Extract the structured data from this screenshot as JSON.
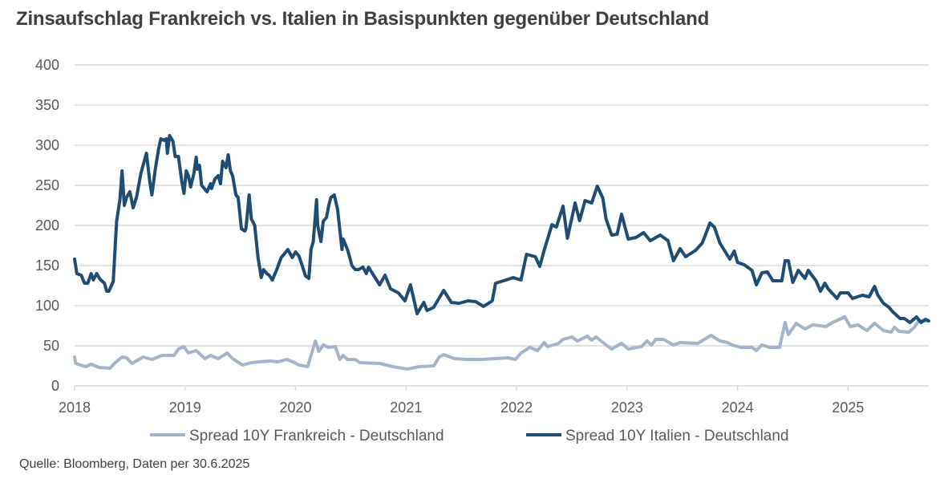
{
  "chart_data": {
    "type": "line",
    "title": "Zinsaufschlag Frankreich vs. Italien in Basispunkten gegenüber Deutschland",
    "xlabel": "",
    "ylabel": "",
    "xlim": [
      2018,
      2025.73
    ],
    "ylim": [
      0,
      400
    ],
    "grid": true,
    "legend_position": "bottom",
    "x_ticks": [
      "2018",
      "2019",
      "2020",
      "2021",
      "2022",
      "2023",
      "2024",
      "2025"
    ],
    "x_tick_values": [
      2018,
      2019,
      2020,
      2021,
      2022,
      2023,
      2024,
      2025
    ],
    "y_ticks": [
      0,
      50,
      100,
      150,
      200,
      250,
      300,
      350,
      400
    ],
    "y_tick_labels": [
      "0",
      "50",
      "100",
      "150",
      "200",
      "250",
      "300",
      "350",
      "400"
    ],
    "colors": {
      "frankreich": "#a3b4c9",
      "italien": "#1f4c72",
      "grid": "#d9d9d9"
    },
    "series": [
      {
        "name": "Spread 10Y Frankreich - Deutschland",
        "key": "frankreich",
        "points": [
          [
            2018.0,
            36
          ],
          [
            2018.01,
            28
          ],
          [
            2018.1,
            24
          ],
          [
            2018.15,
            27
          ],
          [
            2018.22,
            23
          ],
          [
            2018.32,
            22
          ],
          [
            2018.36,
            28
          ],
          [
            2018.43,
            36
          ],
          [
            2018.47,
            35
          ],
          [
            2018.52,
            28
          ],
          [
            2018.62,
            36
          ],
          [
            2018.7,
            33
          ],
          [
            2018.79,
            38
          ],
          [
            2018.9,
            38
          ],
          [
            2018.94,
            46
          ],
          [
            2018.99,
            49
          ],
          [
            2019.03,
            41
          ],
          [
            2019.1,
            44
          ],
          [
            2019.18,
            34
          ],
          [
            2019.23,
            38
          ],
          [
            2019.3,
            34
          ],
          [
            2019.38,
            41
          ],
          [
            2019.43,
            34
          ],
          [
            2019.52,
            26
          ],
          [
            2019.6,
            29
          ],
          [
            2019.67,
            30
          ],
          [
            2019.77,
            31
          ],
          [
            2019.84,
            30
          ],
          [
            2019.92,
            33
          ],
          [
            2019.99,
            29
          ],
          [
            2020.03,
            26
          ],
          [
            2020.11,
            24
          ],
          [
            2020.14,
            38
          ],
          [
            2020.18,
            56
          ],
          [
            2020.21,
            43
          ],
          [
            2020.25,
            51
          ],
          [
            2020.3,
            48
          ],
          [
            2020.36,
            49
          ],
          [
            2020.4,
            33
          ],
          [
            2020.43,
            38
          ],
          [
            2020.47,
            33
          ],
          [
            2020.54,
            33
          ],
          [
            2020.58,
            29
          ],
          [
            2020.76,
            28
          ],
          [
            2020.88,
            24
          ],
          [
            2021.01,
            21
          ],
          [
            2021.12,
            24
          ],
          [
            2021.25,
            25
          ],
          [
            2021.3,
            36
          ],
          [
            2021.34,
            39
          ],
          [
            2021.44,
            34
          ],
          [
            2021.54,
            33
          ],
          [
            2021.68,
            33
          ],
          [
            2021.8,
            34
          ],
          [
            2021.92,
            35
          ],
          [
            2021.99,
            33
          ],
          [
            2022.04,
            41
          ],
          [
            2022.12,
            48
          ],
          [
            2022.19,
            44
          ],
          [
            2022.25,
            54
          ],
          [
            2022.28,
            49
          ],
          [
            2022.38,
            53
          ],
          [
            2022.42,
            58
          ],
          [
            2022.5,
            61
          ],
          [
            2022.55,
            56
          ],
          [
            2022.64,
            62
          ],
          [
            2022.68,
            57
          ],
          [
            2022.72,
            61
          ],
          [
            2022.81,
            51
          ],
          [
            2022.86,
            46
          ],
          [
            2022.95,
            53
          ],
          [
            2023.01,
            46
          ],
          [
            2023.13,
            49
          ],
          [
            2023.18,
            56
          ],
          [
            2023.22,
            51
          ],
          [
            2023.26,
            58
          ],
          [
            2023.33,
            58
          ],
          [
            2023.42,
            51
          ],
          [
            2023.48,
            54
          ],
          [
            2023.64,
            53
          ],
          [
            2023.76,
            63
          ],
          [
            2023.84,
            56
          ],
          [
            2023.91,
            54
          ],
          [
            2023.95,
            51
          ],
          [
            2024.03,
            48
          ],
          [
            2024.13,
            48
          ],
          [
            2024.17,
            44
          ],
          [
            2024.22,
            51
          ],
          [
            2024.29,
            48
          ],
          [
            2024.38,
            48
          ],
          [
            2024.43,
            79
          ],
          [
            2024.46,
            64
          ],
          [
            2024.53,
            78
          ],
          [
            2024.61,
            71
          ],
          [
            2024.68,
            76
          ],
          [
            2024.8,
            74
          ],
          [
            2024.86,
            79
          ],
          [
            2024.97,
            86
          ],
          [
            2025.02,
            74
          ],
          [
            2025.09,
            76
          ],
          [
            2025.17,
            69
          ],
          [
            2025.24,
            78
          ],
          [
            2025.32,
            69
          ],
          [
            2025.39,
            67
          ],
          [
            2025.42,
            73
          ],
          [
            2025.46,
            68
          ],
          [
            2025.55,
            67
          ],
          [
            2025.6,
            73
          ],
          [
            2025.64,
            81
          ],
          [
            2025.73,
            81
          ]
        ]
      },
      {
        "name": "Spread 10Y Italien - Deutschland",
        "key": "italien",
        "points": [
          [
            2018.0,
            158
          ],
          [
            2018.02,
            140
          ],
          [
            2018.06,
            138
          ],
          [
            2018.09,
            128
          ],
          [
            2018.12,
            128
          ],
          [
            2018.15,
            140
          ],
          [
            2018.17,
            132
          ],
          [
            2018.2,
            140
          ],
          [
            2018.23,
            133
          ],
          [
            2018.27,
            128
          ],
          [
            2018.29,
            118
          ],
          [
            2018.31,
            118
          ],
          [
            2018.35,
            130
          ],
          [
            2018.38,
            205
          ],
          [
            2018.41,
            232
          ],
          [
            2018.43,
            268
          ],
          [
            2018.45,
            225
          ],
          [
            2018.47,
            235
          ],
          [
            2018.5,
            242
          ],
          [
            2018.53,
            222
          ],
          [
            2018.56,
            235
          ],
          [
            2018.6,
            265
          ],
          [
            2018.62,
            275
          ],
          [
            2018.65,
            290
          ],
          [
            2018.68,
            255
          ],
          [
            2018.7,
            238
          ],
          [
            2018.73,
            270
          ],
          [
            2018.76,
            295
          ],
          [
            2018.78,
            308
          ],
          [
            2018.81,
            306
          ],
          [
            2018.83,
            308
          ],
          [
            2018.84,
            290
          ],
          [
            2018.86,
            312
          ],
          [
            2018.89,
            305
          ],
          [
            2018.91,
            286
          ],
          [
            2018.94,
            286
          ],
          [
            2018.97,
            255
          ],
          [
            2018.99,
            240
          ],
          [
            2019.01,
            268
          ],
          [
            2019.03,
            262
          ],
          [
            2019.05,
            248
          ],
          [
            2019.08,
            265
          ],
          [
            2019.1,
            285
          ],
          [
            2019.11,
            270
          ],
          [
            2019.13,
            275
          ],
          [
            2019.15,
            250
          ],
          [
            2019.18,
            245
          ],
          [
            2019.2,
            242
          ],
          [
            2019.23,
            252
          ],
          [
            2019.24,
            246
          ],
          [
            2019.27,
            258
          ],
          [
            2019.3,
            262
          ],
          [
            2019.32,
            252
          ],
          [
            2019.34,
            280
          ],
          [
            2019.37,
            272
          ],
          [
            2019.39,
            288
          ],
          [
            2019.41,
            268
          ],
          [
            2019.43,
            262
          ],
          [
            2019.46,
            238
          ],
          [
            2019.48,
            235
          ],
          [
            2019.51,
            196
          ],
          [
            2019.54,
            193
          ],
          [
            2019.55,
            196
          ],
          [
            2019.58,
            238
          ],
          [
            2019.6,
            208
          ],
          [
            2019.63,
            200
          ],
          [
            2019.66,
            160
          ],
          [
            2019.69,
            135
          ],
          [
            2019.71,
            145
          ],
          [
            2019.74,
            140
          ],
          [
            2019.76,
            138
          ],
          [
            2019.79,
            132
          ],
          [
            2019.83,
            145
          ],
          [
            2019.87,
            160
          ],
          [
            2019.9,
            165
          ],
          [
            2019.93,
            170
          ],
          [
            2019.97,
            160
          ],
          [
            2020.0,
            167
          ],
          [
            2020.03,
            162
          ],
          [
            2020.06,
            150
          ],
          [
            2020.09,
            137
          ],
          [
            2020.12,
            134
          ],
          [
            2020.14,
            170
          ],
          [
            2020.16,
            180
          ],
          [
            2020.19,
            232
          ],
          [
            2020.2,
            200
          ],
          [
            2020.23,
            180
          ],
          [
            2020.25,
            205
          ],
          [
            2020.28,
            210
          ],
          [
            2020.3,
            225
          ],
          [
            2020.32,
            235
          ],
          [
            2020.35,
            238
          ],
          [
            2020.38,
            220
          ],
          [
            2020.42,
            170
          ],
          [
            2020.43,
            183
          ],
          [
            2020.47,
            170
          ],
          [
            2020.49,
            160
          ],
          [
            2020.51,
            150
          ],
          [
            2020.54,
            145
          ],
          [
            2020.57,
            145
          ],
          [
            2020.61,
            148
          ],
          [
            2020.64,
            140
          ],
          [
            2020.66,
            148
          ],
          [
            2020.76,
            126
          ],
          [
            2020.81,
            138
          ],
          [
            2020.86,
            121
          ],
          [
            2020.93,
            116
          ],
          [
            2020.99,
            106
          ],
          [
            2021.04,
            126
          ],
          [
            2021.1,
            90
          ],
          [
            2021.16,
            104
          ],
          [
            2021.19,
            94
          ],
          [
            2021.25,
            98
          ],
          [
            2021.34,
            119
          ],
          [
            2021.41,
            104
          ],
          [
            2021.48,
            103
          ],
          [
            2021.56,
            106
          ],
          [
            2021.63,
            105
          ],
          [
            2021.7,
            99
          ],
          [
            2021.78,
            106
          ],
          [
            2021.81,
            128
          ],
          [
            2021.88,
            131
          ],
          [
            2021.97,
            135
          ],
          [
            2022.04,
            132
          ],
          [
            2022.09,
            164
          ],
          [
            2022.17,
            161
          ],
          [
            2022.21,
            149
          ],
          [
            2022.25,
            169
          ],
          [
            2022.32,
            201
          ],
          [
            2022.36,
            198
          ],
          [
            2022.42,
            224
          ],
          [
            2022.46,
            184
          ],
          [
            2022.53,
            228
          ],
          [
            2022.57,
            206
          ],
          [
            2022.62,
            231
          ],
          [
            2022.68,
            228
          ],
          [
            2022.73,
            249
          ],
          [
            2022.78,
            234
          ],
          [
            2022.81,
            208
          ],
          [
            2022.86,
            188
          ],
          [
            2022.91,
            189
          ],
          [
            2022.95,
            214
          ],
          [
            2023.01,
            183
          ],
          [
            2023.08,
            185
          ],
          [
            2023.15,
            191
          ],
          [
            2023.21,
            181
          ],
          [
            2023.3,
            188
          ],
          [
            2023.37,
            181
          ],
          [
            2023.42,
            156
          ],
          [
            2023.48,
            171
          ],
          [
            2023.53,
            161
          ],
          [
            2023.62,
            169
          ],
          [
            2023.68,
            178
          ],
          [
            2023.75,
            203
          ],
          [
            2023.79,
            198
          ],
          [
            2023.84,
            178
          ],
          [
            2023.93,
            158
          ],
          [
            2023.97,
            168
          ],
          [
            2024.0,
            154
          ],
          [
            2024.06,
            151
          ],
          [
            2024.13,
            144
          ],
          [
            2024.17,
            126
          ],
          [
            2024.22,
            141
          ],
          [
            2024.27,
            142
          ],
          [
            2024.32,
            131
          ],
          [
            2024.4,
            131
          ],
          [
            2024.43,
            156
          ],
          [
            2024.46,
            156
          ],
          [
            2024.5,
            129
          ],
          [
            2024.55,
            144
          ],
          [
            2024.61,
            134
          ],
          [
            2024.64,
            144
          ],
          [
            2024.71,
            131
          ],
          [
            2024.75,
            118
          ],
          [
            2024.79,
            128
          ],
          [
            2024.82,
            121
          ],
          [
            2024.9,
            109
          ],
          [
            2024.93,
            116
          ],
          [
            2025.0,
            116
          ],
          [
            2025.04,
            109
          ],
          [
            2025.13,
            113
          ],
          [
            2025.19,
            111
          ],
          [
            2025.24,
            124
          ],
          [
            2025.27,
            113
          ],
          [
            2025.32,
            103
          ],
          [
            2025.37,
            98
          ],
          [
            2025.4,
            93
          ],
          [
            2025.47,
            84
          ],
          [
            2025.51,
            84
          ],
          [
            2025.56,
            79
          ],
          [
            2025.62,
            86
          ],
          [
            2025.66,
            79
          ],
          [
            2025.7,
            83
          ],
          [
            2025.73,
            81
          ]
        ]
      }
    ],
    "source": "Quelle: Bloomberg, Daten per 30.6.2025"
  }
}
